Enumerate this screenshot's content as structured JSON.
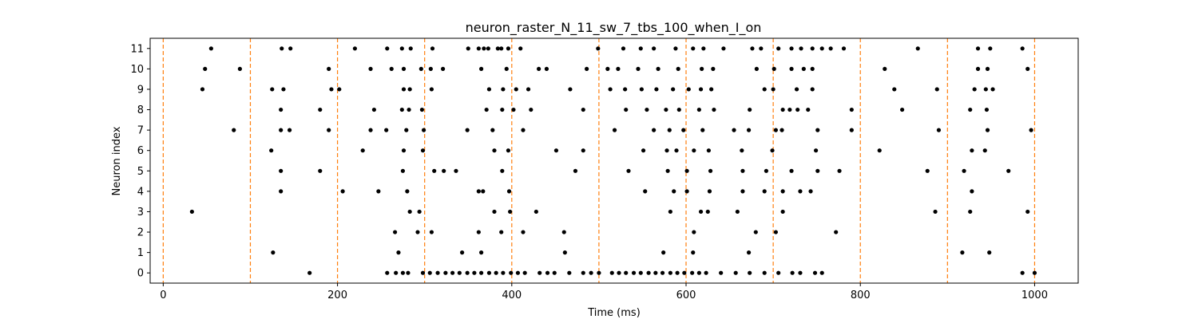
{
  "chart_data": {
    "type": "scatter",
    "title": "neuron_raster_N_11_sw_7_tbs_100_when_I_on",
    "xlabel": "Time (ms)",
    "ylabel": "Neuron index",
    "xlim": [
      -15,
      1050
    ],
    "ylim": [
      -0.5,
      11.5
    ],
    "xticks": [
      0,
      200,
      400,
      600,
      800,
      1000
    ],
    "yticks": [
      0,
      1,
      2,
      3,
      4,
      5,
      6,
      7,
      8,
      9,
      10,
      11
    ],
    "grid": false,
    "legend": "none",
    "point_color": "#000000",
    "vline_color": "#ff7f0e",
    "vlines": [
      0,
      100,
      200,
      300,
      400,
      500,
      600,
      700,
      800,
      900,
      1000
    ],
    "series": [
      {
        "neuron": 0,
        "x": [
          168,
          257,
          267,
          275,
          281,
          298,
          306,
          315,
          324,
          332,
          340,
          349,
          357,
          365,
          374,
          382,
          390,
          399,
          407,
          415,
          432,
          441,
          449,
          466,
          482,
          491,
          500,
          515,
          523,
          531,
          540,
          548,
          557,
          565,
          573,
          582,
          590,
          598,
          607,
          615,
          623,
          640,
          657,
          673,
          690,
          706,
          722,
          731,
          748,
          756,
          986,
          1000
        ]
      },
      {
        "neuron": 1,
        "x": [
          126,
          270,
          343,
          365,
          461,
          574,
          608,
          672,
          917,
          948
        ]
      },
      {
        "neuron": 2,
        "x": [
          266,
          292,
          308,
          362,
          388,
          413,
          460,
          609,
          680,
          703,
          772
        ]
      },
      {
        "neuron": 3,
        "x": [
          33,
          283,
          294,
          380,
          398,
          428,
          582,
          617,
          625,
          659,
          711,
          886,
          926,
          992
        ]
      },
      {
        "neuron": 4,
        "x": [
          135,
          206,
          247,
          280,
          362,
          367,
          397,
          553,
          586,
          601,
          627,
          665,
          690,
          711,
          731,
          743,
          928
        ]
      },
      {
        "neuron": 5,
        "x": [
          135,
          180,
          275,
          311,
          322,
          336,
          389,
          473,
          534,
          579,
          601,
          628,
          665,
          692,
          721,
          751,
          776,
          877,
          919,
          970
        ]
      },
      {
        "neuron": 6,
        "x": [
          124,
          229,
          276,
          298,
          380,
          396,
          451,
          482,
          551,
          578,
          589,
          609,
          626,
          664,
          699,
          749,
          822,
          928,
          943
        ]
      },
      {
        "neuron": 7,
        "x": [
          81,
          135,
          145,
          190,
          238,
          256,
          279,
          299,
          349,
          378,
          413,
          518,
          563,
          581,
          597,
          619,
          655,
          672,
          703,
          710,
          751,
          790,
          890,
          946,
          996
        ]
      },
      {
        "neuron": 8,
        "x": [
          135,
          180,
          242,
          274,
          282,
          297,
          371,
          389,
          402,
          422,
          482,
          531,
          555,
          577,
          592,
          615,
          632,
          673,
          711,
          719,
          728,
          740,
          790,
          848,
          926,
          945
        ]
      },
      {
        "neuron": 9,
        "x": [
          45,
          125,
          138,
          193,
          202,
          276,
          283,
          308,
          374,
          390,
          405,
          419,
          467,
          513,
          530,
          549,
          566,
          585,
          603,
          617,
          629,
          690,
          700,
          727,
          745,
          839,
          888,
          931,
          944,
          952
        ]
      },
      {
        "neuron": 10,
        "x": [
          48,
          88,
          190,
          238,
          262,
          276,
          296,
          307,
          321,
          365,
          394,
          431,
          440,
          486,
          510,
          522,
          545,
          568,
          591,
          618,
          631,
          681,
          701,
          721,
          735,
          745,
          828,
          935,
          946,
          992
        ]
      },
      {
        "neuron": 11,
        "x": [
          55,
          136,
          146,
          220,
          257,
          274,
          284,
          309,
          350,
          362,
          368,
          373,
          384,
          388,
          396,
          410,
          499,
          528,
          548,
          563,
          588,
          608,
          620,
          643,
          676,
          686,
          706,
          721,
          732,
          745,
          756,
          766,
          781,
          866,
          935,
          949,
          986
        ]
      }
    ]
  }
}
